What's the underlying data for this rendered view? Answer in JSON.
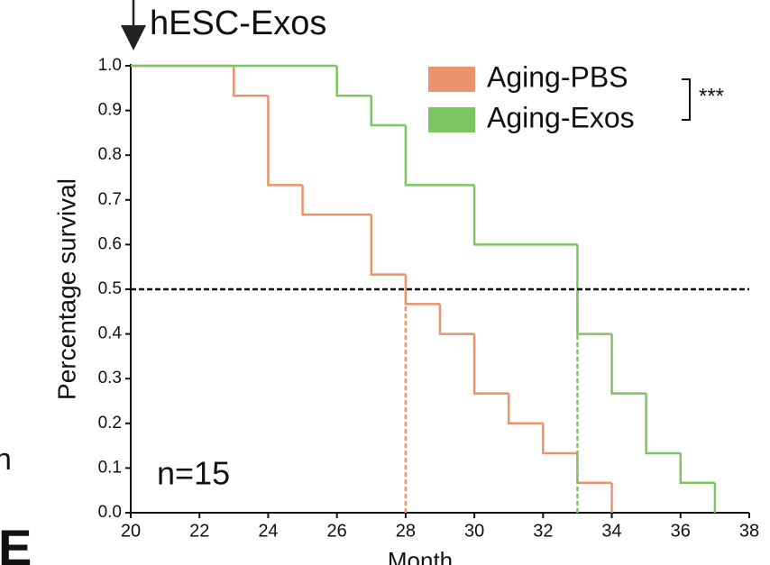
{
  "chart_data": {
    "type": "step",
    "top_label": "hESC-Exos",
    "xlabel": "Month",
    "ylabel": "Percentage survival",
    "sample_size": "n=15",
    "significance": "***",
    "fragments": [
      "n",
      "E"
    ],
    "xlim": [
      20,
      38
    ],
    "ylim": [
      0,
      1
    ],
    "xticks": [
      20,
      22,
      24,
      26,
      28,
      30,
      32,
      34,
      36,
      38
    ],
    "yticks": [
      {
        "value": 0,
        "label": "0.0"
      },
      0.1,
      0.2,
      0.3,
      0.4,
      0.5,
      0.6,
      0.7,
      0.8,
      0.9,
      {
        "value": 1,
        "label": "1.0"
      }
    ],
    "hline": 0.5,
    "legend": "upper right",
    "series": [
      {
        "name": "Aging-PBS",
        "color": "#e9946c",
        "x": [
          20,
          23,
          24,
          25,
          27,
          28,
          29,
          30,
          31,
          32,
          33,
          34
        ],
        "values": [
          1,
          0.933,
          0.733,
          0.667,
          0.533,
          0.467,
          0.4,
          0.267,
          0.2,
          0.133,
          0.067,
          0
        ],
        "median": 28
      },
      {
        "name": "Aging-Exos",
        "color": "#7dc462",
        "x": [
          20,
          26,
          27,
          28,
          30,
          33,
          34,
          35,
          36,
          37
        ],
        "values": [
          1,
          0.933,
          0.867,
          0.733,
          0.6,
          0.4,
          0.267,
          0.133,
          0.067,
          0
        ],
        "median": 33
      }
    ]
  }
}
